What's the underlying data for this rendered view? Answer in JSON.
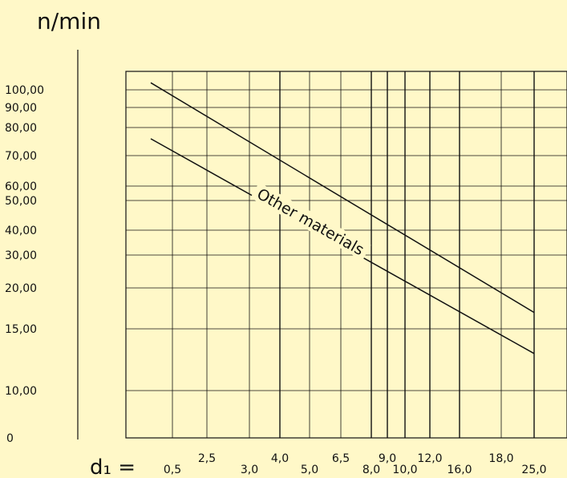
{
  "chart_data": {
    "type": "line",
    "title": "n/min",
    "xlabel_prefix": "d₁ =",
    "x_ticks_top": [
      {
        "label": "2,5",
        "value": 2.5
      },
      {
        "label": "4,0",
        "value": 4.0
      },
      {
        "label": "6,5",
        "value": 6.5
      },
      {
        "label": "9,0",
        "value": 9.0
      },
      {
        "label": "12,0",
        "value": 12.0
      },
      {
        "label": "18,0",
        "value": 18.0
      }
    ],
    "x_ticks_bottom": [
      {
        "label": "0,5",
        "value": 0.5
      },
      {
        "label": "3,0",
        "value": 3.0
      },
      {
        "label": "5,0",
        "value": 5.0
      },
      {
        "label": "8,0",
        "value": 8.0
      },
      {
        "label": "10,0",
        "value": 10.0
      },
      {
        "label": "16,0",
        "value": 16.0
      },
      {
        "label": "25,0",
        "value": 25.0
      }
    ],
    "y_ticks": [
      {
        "label": "100,00",
        "value": 100
      },
      {
        "label": "90,00",
        "value": 90
      },
      {
        "label": "80,00",
        "value": 80
      },
      {
        "label": "70,00",
        "value": 70
      },
      {
        "label": "60,00",
        "value": 60
      },
      {
        "label": "50,00",
        "value": 50
      },
      {
        "label": "40,00",
        "value": 40
      },
      {
        "label": "30,00",
        "value": 30
      },
      {
        "label": "20,00",
        "value": 20
      },
      {
        "label": "15,00",
        "value": 15
      },
      {
        "label": "10,00",
        "value": 10
      },
      {
        "label": "0",
        "value": 0
      }
    ],
    "series": [
      {
        "x": [
          0.2,
          25.0
        ],
        "y": [
          104,
          17
        ]
      },
      {
        "label": "Other materials",
        "x": [
          0.2,
          25.0
        ],
        "y": [
          76,
          13
        ]
      }
    ],
    "grid": true,
    "colors": {
      "background": "#fff8c8",
      "line": "#111111"
    }
  }
}
